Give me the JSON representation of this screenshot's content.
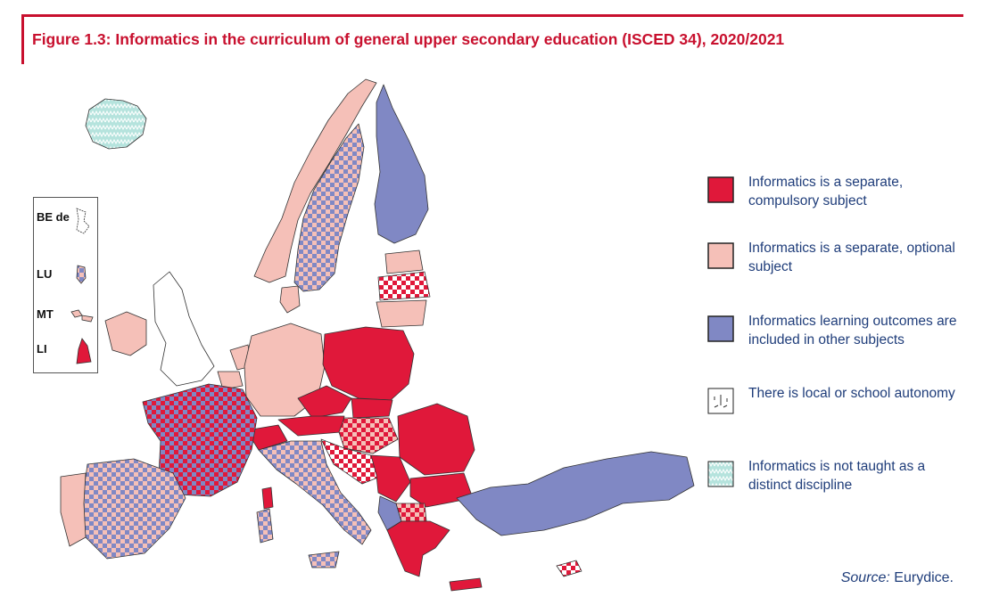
{
  "figure": {
    "title": "Figure 1.3: Informatics in the curriculum of general upper secondary education (ISCED  34), 2020/2021"
  },
  "colors": {
    "accent": "#c8102e",
    "compulsory": "#e0183a",
    "optional": "#f5c0b8",
    "other_subjects": "#8088c4",
    "autonomy": "#ffffff",
    "not_taught": "#b5e3dd",
    "text": "#1f3d7a"
  },
  "legend": [
    {
      "key": "compulsory",
      "label": "Informatics is a separate, compulsory subject",
      "swatch": "solid-red"
    },
    {
      "key": "optional",
      "label": "Informatics is a separate, optional subject",
      "swatch": "solid-pink"
    },
    {
      "key": "other_subjects",
      "label": "Informatics learning outcomes are included in other subjects",
      "swatch": "solid-blue"
    },
    {
      "key": "autonomy",
      "label": "There is local or school autonomy",
      "swatch": "white-dashed"
    },
    {
      "key": "not_taught",
      "label": "Informatics is not taught as a distinct discipline",
      "swatch": "teal-zigzag"
    }
  ],
  "inset": {
    "labels": [
      "BE de",
      "LU",
      "MT",
      "LI"
    ]
  },
  "source": {
    "prefix": "Source:",
    "text": " Eurydice."
  }
}
